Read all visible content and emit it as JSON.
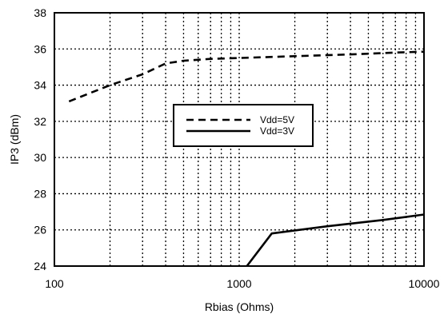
{
  "chart_data": {
    "type": "line",
    "title": "",
    "xlabel": "Rbias (Ohms)",
    "ylabel": "IP3 (dBm)",
    "xscale": "log",
    "xlim": [
      100,
      10000
    ],
    "ylim": [
      24,
      38
    ],
    "x_ticks": [
      100,
      1000,
      10000
    ],
    "x_tick_labels": [
      "100",
      "1000",
      "10000"
    ],
    "y_ticks": [
      24,
      26,
      28,
      30,
      32,
      34,
      36,
      38
    ],
    "y_tick_labels": [
      "24",
      "26",
      "28",
      "30",
      "32",
      "34",
      "36",
      "38"
    ],
    "grid": true,
    "legend_position": "center",
    "series": [
      {
        "name": "Vdd=5V",
        "style": "dashed",
        "color": "#000000",
        "points": [
          [
            120,
            33.1
          ],
          [
            200,
            34.0
          ],
          [
            300,
            34.6
          ],
          [
            400,
            35.2
          ],
          [
            500,
            35.35
          ],
          [
            700,
            35.45
          ],
          [
            1000,
            35.5
          ],
          [
            2000,
            35.6
          ],
          [
            4000,
            35.7
          ],
          [
            7000,
            35.8
          ],
          [
            10000,
            35.85
          ]
        ]
      },
      {
        "name": "Vdd=3V",
        "style": "solid",
        "color": "#000000",
        "points": [
          [
            1100,
            24.0
          ],
          [
            1500,
            25.8
          ],
          [
            3000,
            26.2
          ],
          [
            6000,
            26.55
          ],
          [
            10000,
            26.85
          ]
        ]
      }
    ]
  }
}
